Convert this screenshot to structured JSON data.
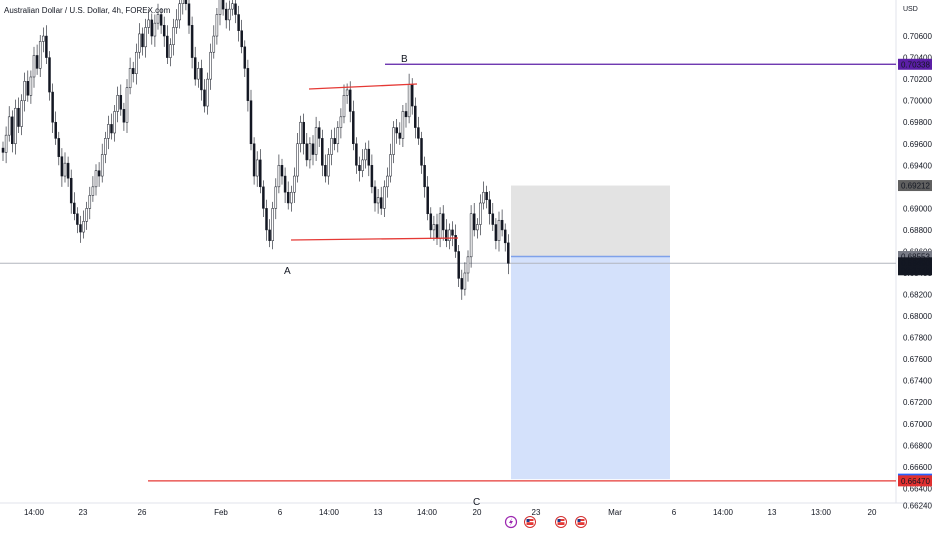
{
  "header": {
    "symbol_title": "Australian Dollar / U.S. Dollar, 4h, FOREX.com",
    "axis_currency": "USD"
  },
  "price_axis": {
    "ticks": [
      "0.70600",
      "0.70400",
      "0.70200",
      "0.70000",
      "0.69800",
      "0.69600",
      "0.69400",
      "0.69200",
      "0.69000",
      "0.68800",
      "0.68600",
      "0.68400",
      "0.68200",
      "0.68000",
      "0.67800",
      "0.67600",
      "0.67400",
      "0.67200",
      "0.67000",
      "0.66800",
      "0.66600",
      "0.66400",
      "0.66240"
    ],
    "badges": [
      {
        "name": "level-b-badge",
        "text": "0.70338",
        "price": 0.70338,
        "color": "#5b1fa6"
      },
      {
        "name": "stop-zone-badge",
        "text": "0.69212",
        "price": 0.69212,
        "color": "#606060"
      },
      {
        "name": "entry-badge",
        "text": "0.68553",
        "price": 0.68553,
        "color": "#787b86"
      },
      {
        "name": "current-price-badge",
        "text": "0.68490",
        "countdown": "02:37:02",
        "price": 0.6849,
        "color": "#131722"
      },
      {
        "name": "target-badge",
        "text": "0.66486",
        "price": 0.66486,
        "color": "#2962ff"
      },
      {
        "name": "level-c-badge",
        "text": "0.66470",
        "price": 0.6647,
        "color": "#e03030"
      }
    ]
  },
  "time_axis": {
    "ticks": [
      "14:00",
      "23",
      "26",
      "Feb",
      "6",
      "14:00",
      "13",
      "14:00",
      "20",
      "23",
      "Mar",
      "6",
      "14:00",
      "13",
      "13:00",
      "20"
    ]
  },
  "annotations": {
    "point_a": "A",
    "point_b": "B",
    "point_c": "C"
  },
  "events": [
    "lightning-icon",
    "us-flag-icon",
    "us-flag-icon",
    "us-flag-icon"
  ],
  "colors": {
    "up": "#ffffff",
    "down": "#131722",
    "trendline": "#e53935",
    "level_b": "#5b1fa6",
    "level_c": "#e53935",
    "stop_zone": "#e0e0e0",
    "target_zone": "#d4e1fb"
  },
  "chart_data": {
    "type": "candlestick",
    "timeframe": "4h",
    "symbol": "AUDUSD",
    "close_series": [
      0.6952,
      0.6968,
      0.6985,
      0.696,
      0.6993,
      0.6976,
      0.7,
      0.7018,
      0.7005,
      0.7022,
      0.7042,
      0.703,
      0.7055,
      0.706,
      0.704,
      0.7008,
      0.698,
      0.6965,
      0.6948,
      0.693,
      0.6942,
      0.6928,
      0.6905,
      0.6895,
      0.6885,
      0.6878,
      0.6888,
      0.69,
      0.6912,
      0.692,
      0.6935,
      0.693,
      0.695,
      0.6965,
      0.6978,
      0.697,
      0.699,
      0.7005,
      0.6992,
      0.698,
      0.7012,
      0.703,
      0.7025,
      0.7045,
      0.7062,
      0.705,
      0.7068,
      0.7075,
      0.706,
      0.7072,
      0.708,
      0.707,
      0.706,
      0.704,
      0.7052,
      0.7068,
      0.7075,
      0.709,
      0.7105,
      0.709,
      0.707,
      0.704,
      0.702,
      0.703,
      0.701,
      0.6995,
      0.702,
      0.7045,
      0.706,
      0.708,
      0.7095,
      0.7085,
      0.7075,
      0.7085,
      0.709,
      0.708,
      0.7065,
      0.705,
      0.703,
      0.7,
      0.696,
      0.693,
      0.6945,
      0.692,
      0.69,
      0.688,
      0.687,
      0.69,
      0.692,
      0.694,
      0.693,
      0.6915,
      0.6905,
      0.6915,
      0.693,
      0.696,
      0.698,
      0.696,
      0.6945,
      0.696,
      0.695,
      0.6975,
      0.6965,
      0.694,
      0.693,
      0.695,
      0.6965,
      0.696,
      0.6975,
      0.6985,
      0.7005,
      0.701,
      0.699,
      0.696,
      0.694,
      0.6935,
      0.6945,
      0.6955,
      0.694,
      0.692,
      0.6905,
      0.691,
      0.69,
      0.692,
      0.693,
      0.695,
      0.6975,
      0.697,
      0.6965,
      0.699,
      0.6985,
      0.7015,
      0.6995,
      0.6975,
      0.6965,
      0.694,
      0.692,
      0.6895,
      0.688,
      0.6885,
      0.6872,
      0.6895,
      0.688,
      0.687,
      0.688,
      0.6875,
      0.686,
      0.6835,
      0.6825,
      0.684,
      0.6855,
      0.6895,
      0.688,
      0.6885,
      0.6905,
      0.6915,
      0.6908,
      0.6895,
      0.6885,
      0.687,
      0.6889,
      0.688,
      0.6868,
      0.6849
    ]
  }
}
